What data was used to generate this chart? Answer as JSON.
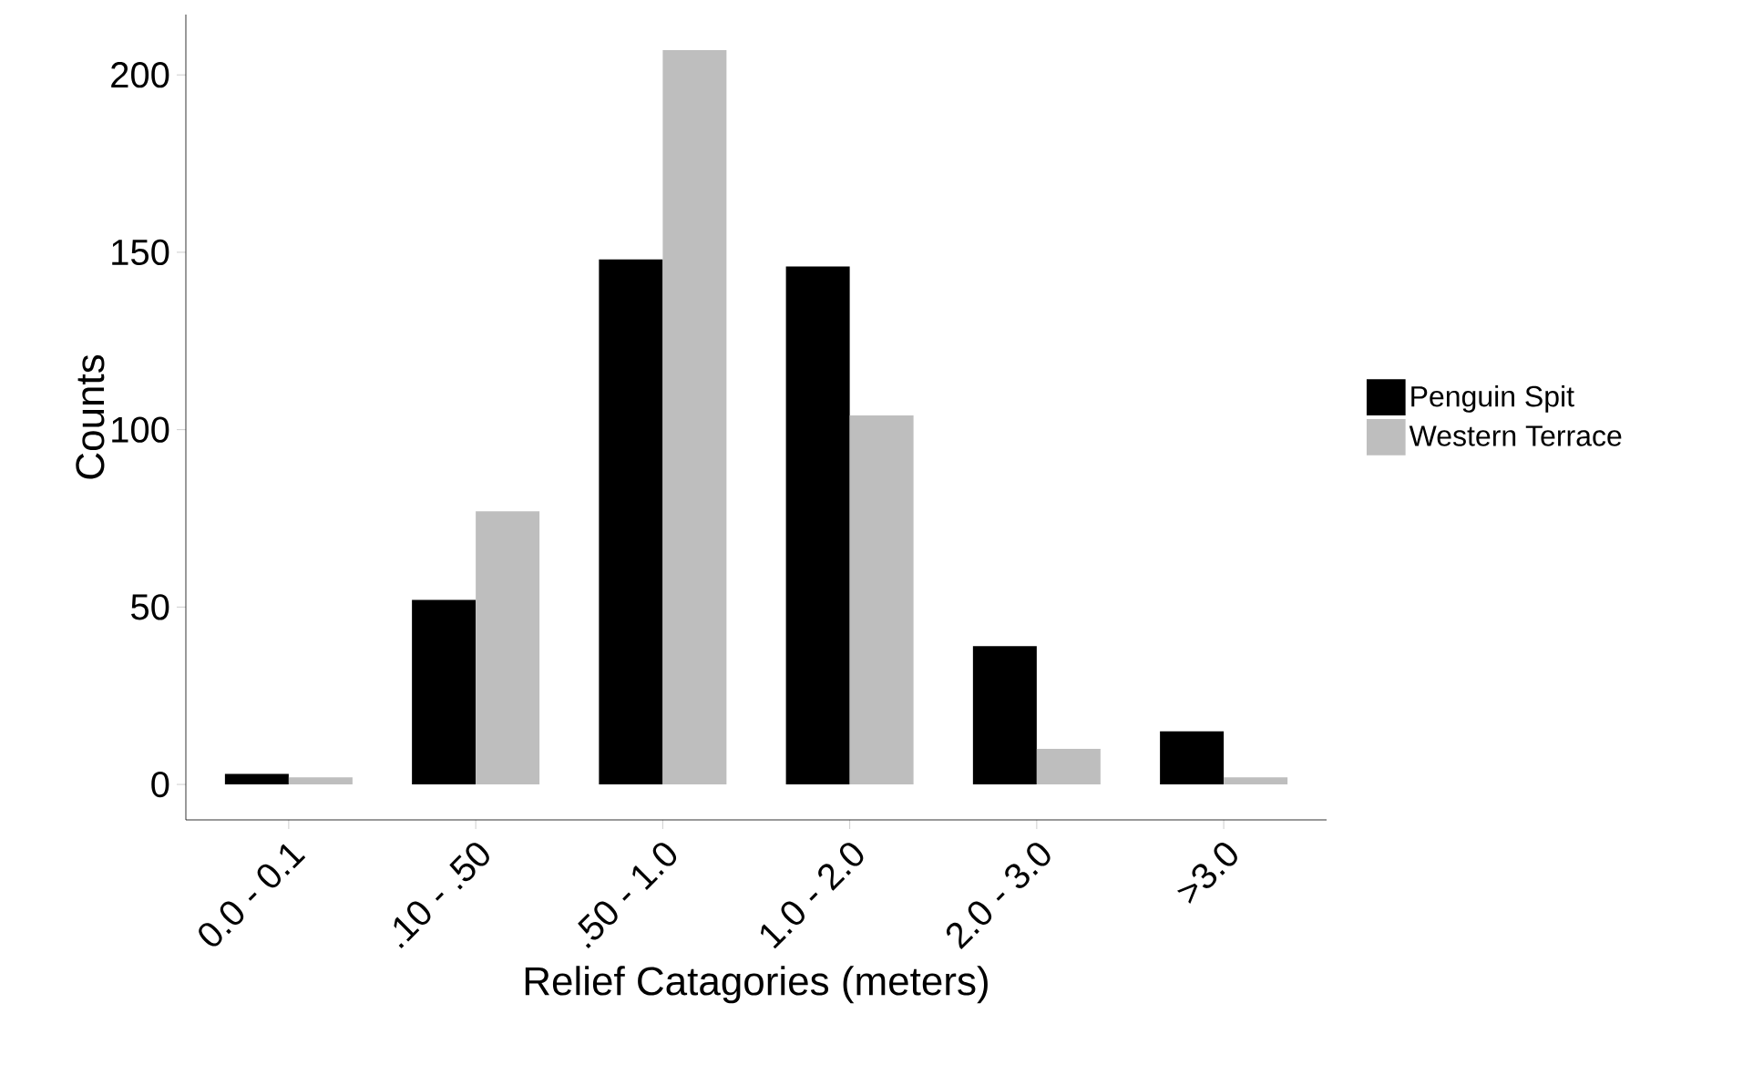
{
  "chart_data": {
    "type": "bar",
    "xlabel": "Relief Catagories (meters)",
    "ylabel": "Counts",
    "categories": [
      "0.0 - 0.1",
      ".10 - .50",
      ".50 - 1.0",
      "1.0 - 2.0",
      "2.0 - 3.0",
      ">3.0"
    ],
    "series": [
      {
        "name": "Penguin Spit",
        "color": "#000000",
        "values": [
          3,
          52,
          148,
          146,
          39,
          15
        ]
      },
      {
        "name": "Western Terrace",
        "color": "#bebebe",
        "values": [
          2,
          77,
          207,
          104,
          10,
          2
        ]
      }
    ],
    "ylim": [
      -10,
      217
    ],
    "yticks": [
      0,
      50,
      100,
      150,
      200
    ],
    "legend": "right"
  }
}
